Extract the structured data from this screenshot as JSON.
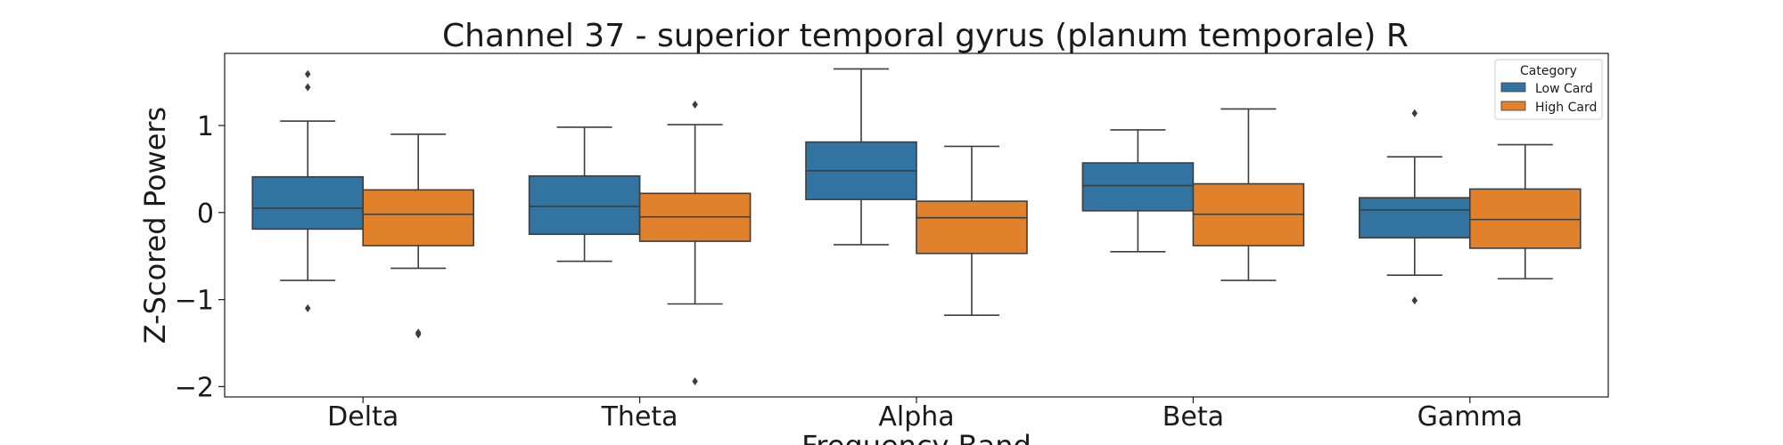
{
  "chart_data": {
    "type": "box",
    "title": "Channel 37 - superior temporal gyrus (planum temporale) R",
    "xlabel": "Frequency Band",
    "ylabel": "Z-Scored Powers",
    "ylim": [
      -2.1,
      1.78
    ],
    "yticks": [
      1,
      0,
      -1,
      -2
    ],
    "ytick_labels": [
      "1",
      "0",
      "−1",
      "−2"
    ],
    "categories": [
      "Delta",
      "Theta",
      "Alpha",
      "Beta",
      "Gamma"
    ],
    "legend": {
      "title": "Category",
      "position": "top-right"
    },
    "series": [
      {
        "name": "Low Card",
        "color": "#3274a1",
        "boxes": [
          {
            "whisker_low": -0.78,
            "q1": -0.19,
            "median": 0.05,
            "q3": 0.41,
            "whisker_high": 1.05,
            "outliers": [
              1.59,
              1.44,
              -1.1
            ]
          },
          {
            "whisker_low": -0.56,
            "q1": -0.25,
            "median": 0.07,
            "q3": 0.42,
            "whisker_high": 0.98,
            "outliers": []
          },
          {
            "whisker_low": -0.37,
            "q1": 0.15,
            "median": 0.48,
            "q3": 0.81,
            "whisker_high": 1.65,
            "outliers": []
          },
          {
            "whisker_low": -0.45,
            "q1": 0.02,
            "median": 0.31,
            "q3": 0.57,
            "whisker_high": 0.95,
            "outliers": []
          },
          {
            "whisker_low": -0.72,
            "q1": -0.29,
            "median": 0.03,
            "q3": 0.17,
            "whisker_high": 0.64,
            "outliers": [
              1.14,
              -1.01
            ]
          }
        ]
      },
      {
        "name": "High Card",
        "color": "#e1812c",
        "boxes": [
          {
            "whisker_low": -0.64,
            "q1": -0.38,
            "median": -0.02,
            "q3": 0.26,
            "whisker_high": 0.9,
            "outliers": [
              -1.38,
              -1.4
            ]
          },
          {
            "whisker_low": -1.05,
            "q1": -0.33,
            "median": -0.05,
            "q3": 0.22,
            "whisker_high": 1.01,
            "outliers": [
              1.24,
              -1.94
            ]
          },
          {
            "whisker_low": -1.18,
            "q1": -0.47,
            "median": -0.06,
            "q3": 0.13,
            "whisker_high": 0.76,
            "outliers": []
          },
          {
            "whisker_low": -0.78,
            "q1": -0.38,
            "median": -0.02,
            "q3": 0.33,
            "whisker_high": 1.19,
            "outliers": []
          },
          {
            "whisker_low": -0.76,
            "q1": -0.41,
            "median": -0.08,
            "q3": 0.27,
            "whisker_high": 0.78,
            "outliers": []
          }
        ]
      }
    ]
  }
}
